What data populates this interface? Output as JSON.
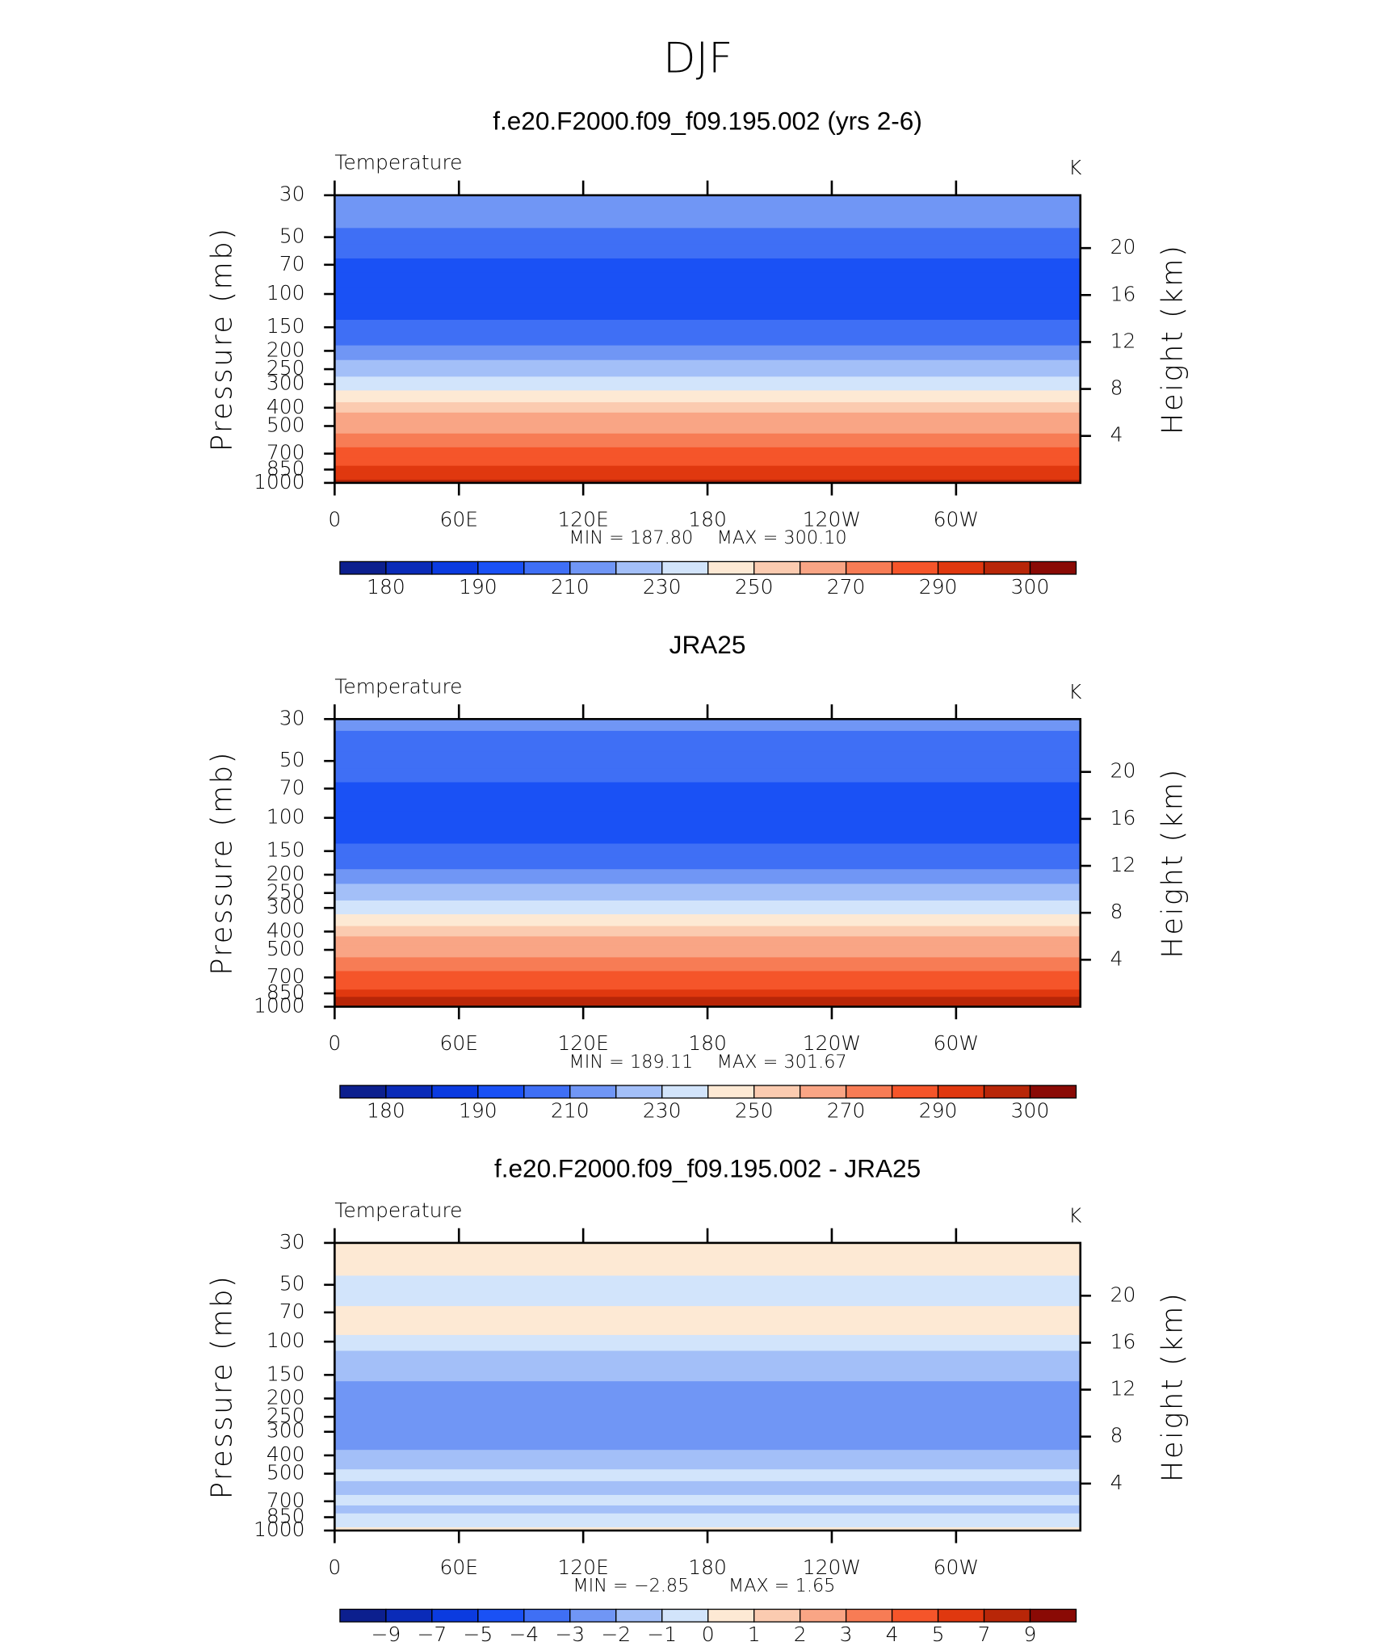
{
  "title": "DJF",
  "chart_data": [
    {
      "type": "contour",
      "title": "f.e20.F2000.f09_f09.195.002 (yrs 2-6)",
      "left_title": "Temperature",
      "right_title": "K",
      "ylabel": "Pressure (mb)",
      "y2label": "Height (km)",
      "ylim": [
        1000,
        30
      ],
      "log_y": true,
      "yticks": [
        30,
        50,
        70,
        100,
        150,
        200,
        250,
        300,
        400,
        500,
        700,
        850,
        1000
      ],
      "y2lim": [
        0,
        24.5
      ],
      "y2ticks": [
        4,
        8,
        12,
        16,
        20
      ],
      "xlim": [
        0,
        360
      ],
      "xticks": [
        0,
        {
          "value": 60,
          "label": "60E"
        },
        {
          "value": 120,
          "label": "120E"
        },
        180,
        {
          "value": 240,
          "label": "120W"
        },
        {
          "value": 300,
          "label": "60W"
        }
      ],
      "min_text": "MIN  =  187.80",
      "max_text": "MAX  =  300.10",
      "field": {
        "pressure": [
          30,
          40,
          50,
          60,
          70,
          85,
          100,
          125,
          150,
          175,
          200,
          250,
          300,
          350,
          400,
          450,
          500,
          600,
          700,
          775,
          850,
          925,
          1000
        ],
        "values": [
          214,
          212,
          205,
          203,
          196,
          195,
          194,
          196,
          204,
          208,
          214,
          224,
          234,
          246,
          254,
          262,
          266,
          274,
          282,
          286,
          291,
          294,
          296
        ]
      },
      "colorbar": {
        "labels": [
          180,
          190,
          210,
          230,
          250,
          270,
          290,
          300
        ],
        "colors": [
          "#0c1f8e",
          "#0a2bb8",
          "#0b3be0",
          "#1a51f5",
          "#3f6ff5",
          "#7096f5",
          "#a3bff8",
          "#d2e4fb",
          "#fde9d4",
          "#fbcbb0",
          "#f9a585",
          "#f77c55",
          "#f5552a",
          "#e0380f",
          "#b82608",
          "#8a0a05"
        ]
      }
    },
    {
      "type": "contour",
      "title": "JRA25",
      "left_title": "Temperature",
      "right_title": "K",
      "ylabel": "Pressure (mb)",
      "y2label": "Height (km)",
      "ylim": [
        1000,
        30
      ],
      "log_y": true,
      "yticks": [
        30,
        50,
        70,
        100,
        150,
        200,
        250,
        300,
        400,
        500,
        700,
        850,
        1000
      ],
      "y2lim": [
        0,
        24.5
      ],
      "y2ticks": [
        4,
        8,
        12,
        16,
        20
      ],
      "xlim": [
        0,
        360
      ],
      "xticks": [
        0,
        {
          "value": 60,
          "label": "60E"
        },
        {
          "value": 120,
          "label": "120E"
        },
        180,
        {
          "value": 240,
          "label": "120W"
        },
        {
          "value": 300,
          "label": "60W"
        }
      ],
      "min_text": "MIN  =  189.11",
      "max_text": "MAX  =  301.67",
      "field": {
        "pressure": [
          30,
          40,
          50,
          60,
          70,
          85,
          100,
          125,
          150,
          175,
          200,
          250,
          300,
          350,
          400,
          450,
          500,
          600,
          700,
          775,
          850,
          925,
          1000
        ],
        "values": [
          213,
          206,
          205,
          203,
          196,
          195,
          194,
          196,
          204,
          209,
          215,
          226,
          236,
          247,
          255,
          263,
          267,
          275,
          283,
          287,
          292,
          295,
          297
        ]
      },
      "colorbar": {
        "labels": [
          180,
          190,
          210,
          230,
          250,
          270,
          290,
          300
        ],
        "colors": [
          "#0c1f8e",
          "#0a2bb8",
          "#0b3be0",
          "#1a51f5",
          "#3f6ff5",
          "#7096f5",
          "#a3bff8",
          "#d2e4fb",
          "#fde9d4",
          "#fbcbb0",
          "#f9a585",
          "#f77c55",
          "#f5552a",
          "#e0380f",
          "#b82608",
          "#8a0a05"
        ]
      }
    },
    {
      "type": "contour",
      "title": "f.e20.F2000.f09_f09.195.002 - JRA25",
      "left_title": "Temperature",
      "right_title": "K",
      "ylabel": "Pressure (mb)",
      "y2label": "Height (km)",
      "ylim": [
        1000,
        30
      ],
      "log_y": true,
      "yticks": [
        30,
        50,
        70,
        100,
        150,
        200,
        250,
        300,
        400,
        500,
        700,
        850,
        1000
      ],
      "y2lim": [
        0,
        24.5
      ],
      "y2ticks": [
        4,
        8,
        12,
        16,
        20
      ],
      "xlim": [
        0,
        360
      ],
      "xticks": [
        0,
        {
          "value": 60,
          "label": "60E"
        },
        {
          "value": 120,
          "label": "120E"
        },
        180,
        {
          "value": 240,
          "label": "120W"
        },
        {
          "value": 300,
          "label": "60W"
        }
      ],
      "min_text": "MIN  =    −2.85",
      "max_text": "MAX  =      1.65",
      "field": {
        "pressure": [
          30,
          40,
          50,
          60,
          70,
          85,
          100,
          125,
          150,
          175,
          200,
          250,
          300,
          350,
          400,
          450,
          500,
          600,
          700,
          775,
          850,
          925,
          1000
        ],
        "values": [
          0.5,
          0.5,
          -0.5,
          -0.5,
          0.3,
          0.3,
          -0.5,
          -1.2,
          -1.5,
          -2.3,
          -2.4,
          -2.5,
          -2.4,
          -2.2,
          -1.5,
          -1.2,
          -0.6,
          -1.5,
          -0.8,
          -1.3,
          -0.5,
          -0.5,
          0.2
        ]
      },
      "colorbar": {
        "labels": [
          {
            "value": -9,
            "label": "−9"
          },
          {
            "value": -7,
            "label": "−7"
          },
          {
            "value": -5,
            "label": "−5"
          },
          {
            "value": -4,
            "label": "−4"
          },
          {
            "value": -3,
            "label": "−3"
          },
          {
            "value": -2,
            "label": "−2"
          },
          {
            "value": -1,
            "label": "−1"
          },
          0,
          1,
          2,
          3,
          4,
          5,
          7,
          9
        ],
        "colors": [
          "#0c1f8e",
          "#0a2bb8",
          "#0b3be0",
          "#1a51f5",
          "#3f6ff5",
          "#7096f5",
          "#a3bff8",
          "#d2e4fb",
          "#fde9d4",
          "#fbcbb0",
          "#f9a585",
          "#f77c55",
          "#f5552a",
          "#e0380f",
          "#b82608",
          "#8a0a05"
        ]
      }
    }
  ]
}
